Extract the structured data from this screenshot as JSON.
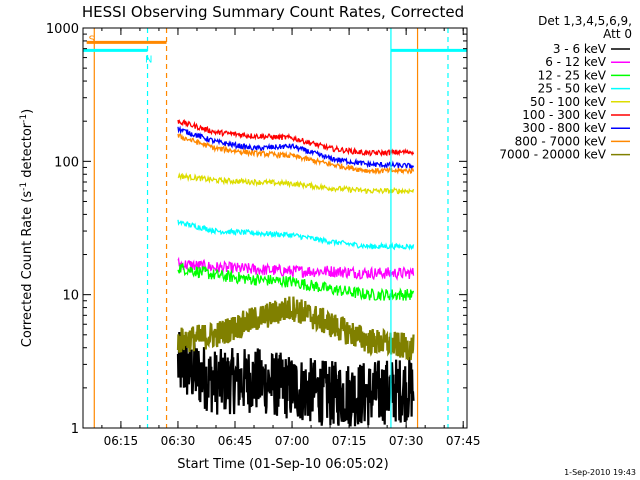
{
  "chart_data": {
    "type": "line",
    "title": "HESSI Observing Summary Count Rates, Corrected",
    "xlabel": "Start Time (01-Sep-10 06:05:02)",
    "ylabel": "Corrected Count Rate (s",
    "ylabel_sup1": "-1",
    "ylabel_mid": " detector",
    "ylabel_sup2": "-1",
    "ylabel_end": ")",
    "y_scale": "log",
    "xlim": [
      "06:05:02",
      "07:46:00"
    ],
    "ylim": [
      1,
      1000
    ],
    "x_ticks": [
      "06:15",
      "06:30",
      "06:45",
      "07:00",
      "07:15",
      "07:30",
      "07:45"
    ],
    "y_ticks": [
      {
        "value": 1,
        "label": "1"
      },
      {
        "value": 10,
        "label": "10"
      },
      {
        "value": 100,
        "label": "100"
      },
      {
        "value": 1000,
        "label": "1000"
      }
    ],
    "grid": false,
    "legend": {
      "placement": "right",
      "header": [
        "Det 1,3,4,5,6,9,",
        "Att 0"
      ]
    },
    "series": [
      {
        "name": "3 - 6 keV",
        "color": "#000000",
        "x": [
          "06:30",
          "06:40",
          "06:50",
          "07:00",
          "07:10",
          "07:20",
          "07:32"
        ],
        "values": [
          3.0,
          2.2,
          2.3,
          2.0,
          1.8,
          1.8,
          2.0
        ]
      },
      {
        "name": "6 - 12 keV",
        "color": "#ff00ff",
        "x": [
          "06:30",
          "06:40",
          "06:50",
          "07:00",
          "07:10",
          "07:20",
          "07:32"
        ],
        "values": [
          17,
          16,
          15.5,
          15,
          15,
          14.5,
          14.5
        ]
      },
      {
        "name": "12 - 25 keV",
        "color": "#00ff00",
        "x": [
          "06:30",
          "06:40",
          "06:50",
          "07:00",
          "07:10",
          "07:20",
          "07:32"
        ],
        "values": [
          16,
          14,
          13,
          12.5,
          11,
          10,
          10
        ]
      },
      {
        "name": "25 - 50 keV",
        "color": "#00ffff",
        "x": [
          "06:30",
          "06:40",
          "06:50",
          "07:00",
          "07:10",
          "07:20",
          "07:32"
        ],
        "values": [
          35,
          30,
          29,
          28,
          25,
          23,
          23
        ]
      },
      {
        "name": "50 - 100 keV",
        "color": "#dddd00",
        "x": [
          "06:30",
          "06:40",
          "06:50",
          "07:00",
          "07:10",
          "07:20",
          "07:32"
        ],
        "values": [
          78,
          72,
          70,
          68,
          63,
          60,
          60
        ]
      },
      {
        "name": "100 - 300 keV",
        "color": "#ff0000",
        "x": [
          "06:30",
          "06:40",
          "06:50",
          "07:00",
          "07:10",
          "07:20",
          "07:32"
        ],
        "values": [
          200,
          165,
          155,
          150,
          125,
          115,
          118
        ]
      },
      {
        "name": "300 - 800 keV",
        "color": "#0000ff",
        "x": [
          "06:30",
          "06:40",
          "06:50",
          "07:00",
          "07:10",
          "07:20",
          "07:32"
        ],
        "values": [
          175,
          140,
          125,
          130,
          105,
          95,
          92
        ]
      },
      {
        "name": "800 - 7000 keV",
        "color": "#ff8800",
        "x": [
          "06:30",
          "06:40",
          "06:50",
          "07:00",
          "07:10",
          "07:20",
          "07:32"
        ],
        "values": [
          155,
          125,
          115,
          110,
          95,
          85,
          85
        ]
      },
      {
        "name": "7000 - 20000 keV",
        "color": "#808000",
        "x": [
          "06:30",
          "06:40",
          "06:50",
          "07:00",
          "07:10",
          "07:20",
          "07:32"
        ],
        "values": [
          4.5,
          5.0,
          6.5,
          8.0,
          6.0,
          4.5,
          4.0
        ]
      }
    ],
    "flags": [
      {
        "label": "S",
        "color": "#ff8800",
        "from": "06:06",
        "to": "06:27",
        "value": 780
      },
      {
        "label": "N",
        "color": "#00ffff",
        "from": "06:05",
        "to": "06:22",
        "value": 680
      },
      {
        "label": "",
        "color": "#00ffff",
        "from": "07:26",
        "to": "07:46",
        "value": 680
      }
    ],
    "markers": [
      {
        "time": "06:08",
        "color": "#ff8800",
        "style": "solid"
      },
      {
        "time": "06:22",
        "color": "#00ffff",
        "style": "dashed"
      },
      {
        "time": "06:27",
        "color": "#ff8800",
        "style": "dashed"
      },
      {
        "time": "07:26",
        "color": "#00ffff",
        "style": "solid"
      },
      {
        "time": "07:33",
        "color": "#ff8800",
        "style": "solid"
      },
      {
        "time": "07:41",
        "color": "#00ffff",
        "style": "dashed"
      }
    ]
  },
  "timestamp": "1-Sep-2010 19:43"
}
